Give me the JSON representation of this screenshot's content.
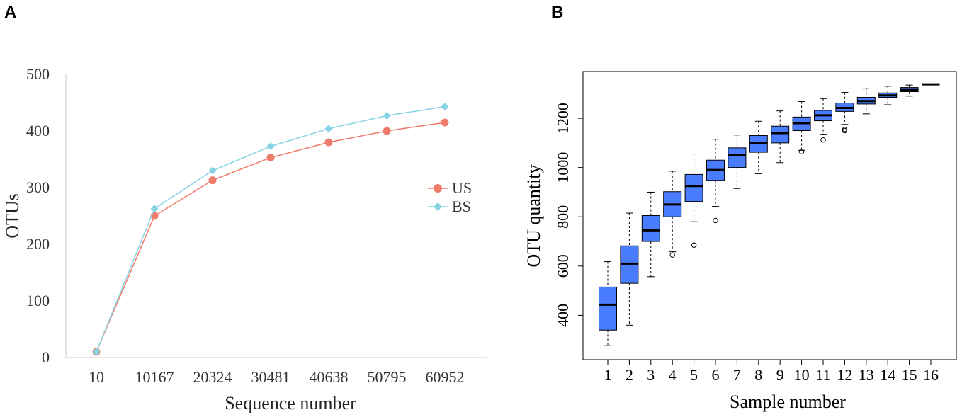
{
  "panels": {
    "a_label": "A",
    "b_label": "B"
  },
  "colors": {
    "us": "#ef7b6b",
    "bs": "#86d3e6",
    "box_fill": "#4a7cff",
    "axis": "#cccccc"
  },
  "chart_data": [
    {
      "type": "line",
      "xlabel": "Sequence number",
      "ylabel": "OTUs",
      "categories": [
        "10",
        "10167",
        "20324",
        "30481",
        "40638",
        "50795",
        "60952"
      ],
      "ylim": [
        0,
        500
      ],
      "yticks": [
        "0",
        "100",
        "200",
        "300",
        "400",
        "500"
      ],
      "legend_position": "right",
      "series": [
        {
          "name": "US",
          "marker": "circle",
          "values": [
            10,
            250,
            313,
            353,
            380,
            400,
            415
          ]
        },
        {
          "name": "BS",
          "marker": "diamond",
          "values": [
            10,
            263,
            330,
            373,
            404,
            427,
            443
          ]
        }
      ]
    },
    {
      "type": "box",
      "xlabel": "Sample number",
      "ylabel": "OTU quantity",
      "ylim": [
        220,
        1390
      ],
      "yticks": [
        "400",
        "600",
        "800",
        "1000",
        "1200"
      ],
      "categories": [
        "1",
        "2",
        "3",
        "4",
        "5",
        "6",
        "7",
        "8",
        "9",
        "10",
        "11",
        "12",
        "13",
        "14",
        "15",
        "16"
      ],
      "boxes": [
        {
          "min": 278,
          "q1": 340,
          "median": 443,
          "q3": 515,
          "max": 618,
          "outliers": []
        },
        {
          "min": 360,
          "q1": 530,
          "median": 610,
          "q3": 682,
          "max": 815,
          "outliers": []
        },
        {
          "min": 557,
          "q1": 700,
          "median": 745,
          "q3": 805,
          "max": 900,
          "outliers": []
        },
        {
          "min": 658,
          "q1": 800,
          "median": 850,
          "q3": 902,
          "max": 985,
          "outliers": [
            645
          ]
        },
        {
          "min": 780,
          "q1": 862,
          "median": 925,
          "q3": 972,
          "max": 1055,
          "outliers": [
            685
          ]
        },
        {
          "min": 842,
          "q1": 948,
          "median": 990,
          "q3": 1030,
          "max": 1115,
          "outliers": [
            785
          ]
        },
        {
          "min": 915,
          "q1": 1000,
          "median": 1050,
          "q3": 1080,
          "max": 1132,
          "outliers": []
        },
        {
          "min": 975,
          "q1": 1062,
          "median": 1100,
          "q3": 1130,
          "max": 1188,
          "outliers": []
        },
        {
          "min": 1020,
          "q1": 1100,
          "median": 1140,
          "q3": 1168,
          "max": 1230,
          "outliers": []
        },
        {
          "min": 1070,
          "q1": 1150,
          "median": 1180,
          "q3": 1205,
          "max": 1268,
          "outliers": [
            1065
          ]
        },
        {
          "min": 1135,
          "q1": 1190,
          "median": 1212,
          "q3": 1232,
          "max": 1280,
          "outliers": [
            1112
          ]
        },
        {
          "min": 1175,
          "q1": 1228,
          "median": 1242,
          "q3": 1262,
          "max": 1305,
          "outliers": [
            1155,
            1150
          ]
        },
        {
          "min": 1218,
          "q1": 1258,
          "median": 1270,
          "q3": 1285,
          "max": 1322,
          "outliers": []
        },
        {
          "min": 1255,
          "q1": 1285,
          "median": 1293,
          "q3": 1303,
          "max": 1330,
          "outliers": []
        },
        {
          "min": 1290,
          "q1": 1308,
          "median": 1315,
          "q3": 1325,
          "max": 1335,
          "outliers": []
        },
        {
          "min": 1338,
          "q1": 1338,
          "median": 1338,
          "q3": 1338,
          "max": 1338,
          "outliers": []
        }
      ]
    }
  ]
}
